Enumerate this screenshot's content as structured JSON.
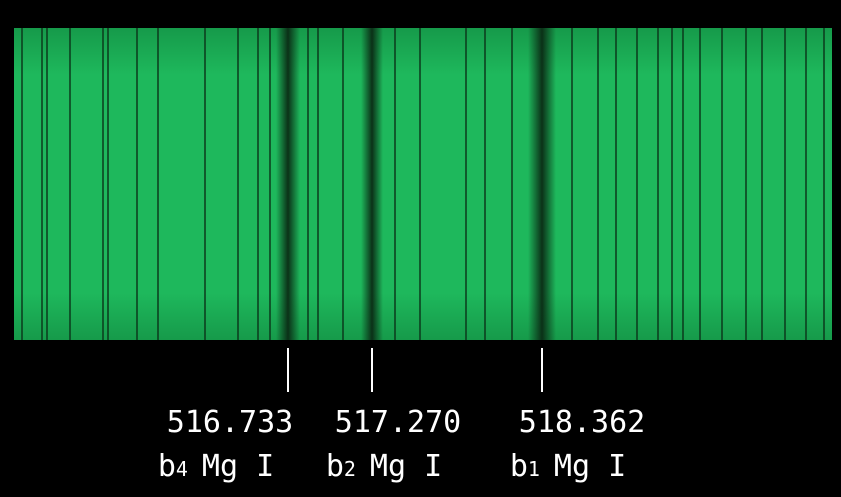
{
  "lines": [
    {
      "wavelength": "516.733",
      "name": "b",
      "index": "4",
      "element": "Mg I"
    },
    {
      "wavelength": "517.270",
      "name": "b",
      "index": "2",
      "element": "Mg I"
    },
    {
      "wavelength": "518.362",
      "name": "b",
      "index": "1",
      "element": "Mg I"
    }
  ]
}
